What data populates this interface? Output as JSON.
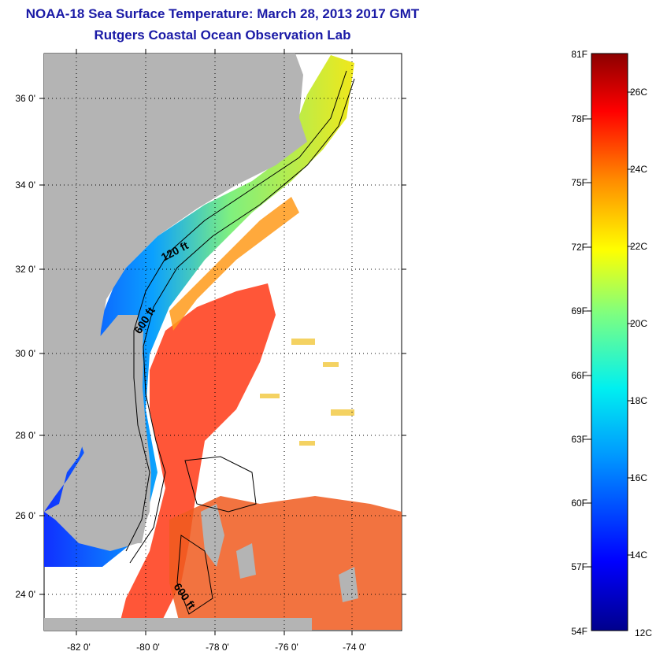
{
  "title": "NOAA-18 Sea Surface Temperature:  March 28, 2013 2017 GMT",
  "subtitle": "Rutgers Coastal Ocean Observation Lab",
  "map": {
    "lon_labels": [
      "-82 0'",
      "-80 0'",
      "-78 0'",
      "-76 0'",
      "-74 0'"
    ],
    "lat_labels": [
      "36 0'",
      "34 0'",
      "32 0'",
      "30 0'",
      "28 0'",
      "26 0'",
      "24 0'"
    ],
    "contour_labels": [
      "120 ft",
      "600 ft",
      "600 ft"
    ],
    "colors": {
      "land": "#b4b4b4",
      "cold": "#1a3cff",
      "warm": "#ff4a1a",
      "mid": "#f0e81a"
    }
  },
  "colorbar": {
    "fahrenheit_labels": [
      "81F",
      "78F",
      "75F",
      "72F",
      "69F",
      "66F",
      "63F",
      "60F",
      "57F",
      "54F"
    ],
    "celsius_labels": [
      "26C",
      "24C",
      "22C",
      "20C",
      "18C",
      "16C",
      "14C",
      "12C"
    ]
  }
}
